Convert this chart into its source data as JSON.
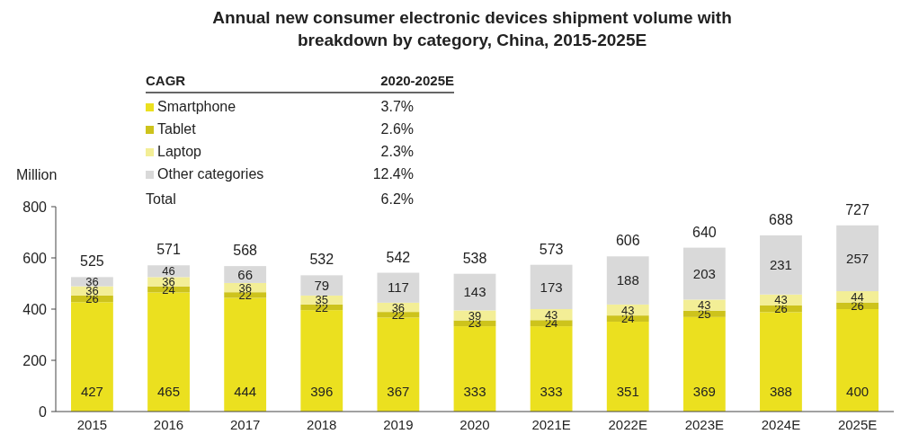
{
  "chart_data": {
    "type": "bar",
    "stacked": true,
    "title": "Annual new consumer electronic devices shipment volume with breakdown by category, China, 2015-2025E",
    "ylabel": "Million",
    "categories": [
      "2015",
      "2016",
      "2017",
      "2018",
      "2019",
      "2020",
      "2021E",
      "2022E",
      "2023E",
      "2024E",
      "2025E"
    ],
    "series": [
      {
        "name": "Smartphone",
        "color": "#ebe01f",
        "values": [
          427,
          465,
          444,
          396,
          367,
          333,
          333,
          351,
          369,
          388,
          400
        ]
      },
      {
        "name": "Tablet",
        "color": "#cdc31c",
        "values": [
          26,
          24,
          22,
          22,
          22,
          23,
          24,
          24,
          25,
          26,
          26
        ]
      },
      {
        "name": "Laptop",
        "color": "#f3ee96",
        "values": [
          36,
          36,
          36,
          35,
          36,
          39,
          43,
          43,
          43,
          43,
          44
        ]
      },
      {
        "name": "Other categories",
        "color": "#d9d9d9",
        "values": [
          36,
          46,
          66,
          79,
          117,
          143,
          173,
          188,
          203,
          231,
          257
        ]
      }
    ],
    "totals": [
      "525",
      "571",
      "568",
      "532",
      "542",
      "538",
      "573",
      "606",
      "640",
      "688",
      "727"
    ],
    "data_labels": true,
    "legend": "top left",
    "legend_title": "CAGR",
    "annotations": [
      "2020-2025E",
      "3.7%",
      "2.6%",
      "2.3%",
      "12.4%",
      "Total",
      "6.2%"
    ],
    "ylim": [
      0,
      800
    ],
    "yticks": [
      0,
      200,
      400,
      600,
      800
    ],
    "grid": false
  }
}
